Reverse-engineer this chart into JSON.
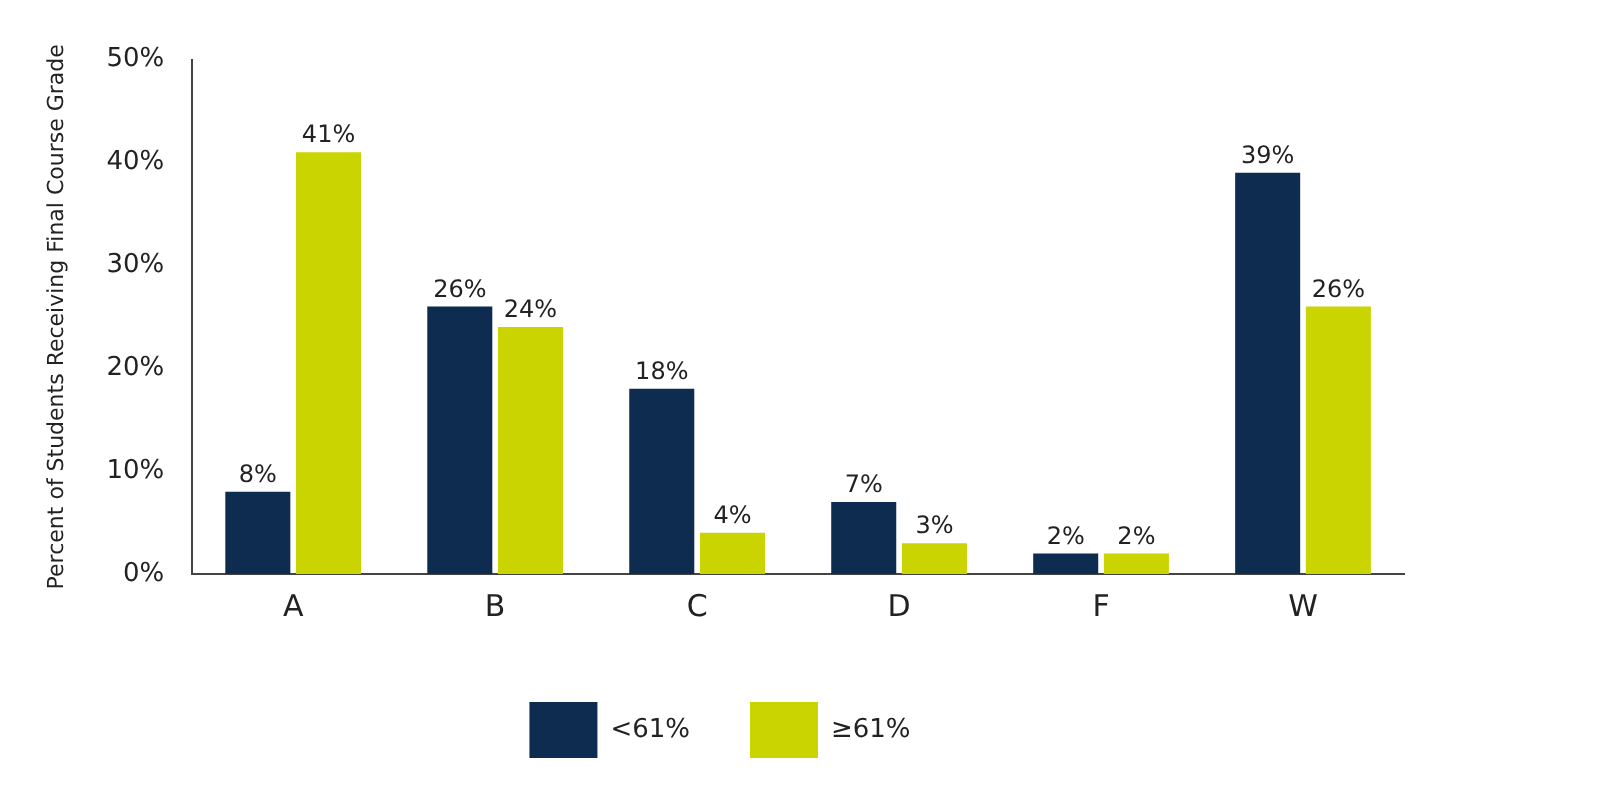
{
  "chart_data": {
    "type": "bar",
    "ylabel": "Percent of Students Receiving Final Course Grade",
    "categories": [
      "A",
      "B",
      "C",
      "D",
      "F",
      "W"
    ],
    "series": [
      {
        "name": "<61%",
        "color": "#0e2c4f",
        "values": [
          8,
          26,
          18,
          7,
          2,
          39
        ]
      },
      {
        "name": "≥61%",
        "color": "#c9d400",
        "values": [
          41,
          24,
          4,
          3,
          2,
          26
        ]
      }
    ],
    "ylim": [
      0,
      50
    ],
    "yticks": [
      {
        "value": 0,
        "label": "0%"
      },
      {
        "value": 10,
        "label": "10%"
      },
      {
        "value": 20,
        "label": "20%"
      },
      {
        "value": 30,
        "label": "30%"
      },
      {
        "value": 40,
        "label": "40%"
      },
      {
        "value": 50,
        "label": "50%"
      }
    ],
    "value_labels": [
      [
        "8%",
        "26%",
        "18%",
        "7%",
        "2%",
        "39%"
      ],
      [
        "41%",
        "24%",
        "4%",
        "3%",
        "2%",
        "26%"
      ]
    ],
    "grid": false,
    "legend": "bottom"
  }
}
